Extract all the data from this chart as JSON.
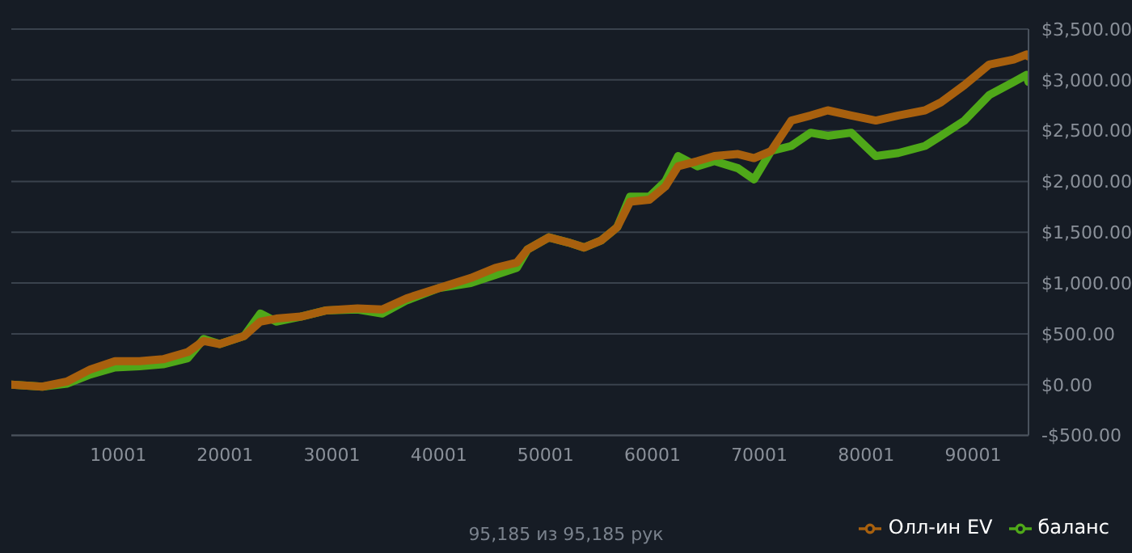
{
  "chart_data": {
    "type": "line",
    "annotations": [
      "95,185 из 95,185 рук"
    ],
    "x": [
      1,
      2900,
      5200,
      7400,
      9700,
      12000,
      14200,
      16500,
      18000,
      19500,
      21800,
      23300,
      24800,
      27100,
      29400,
      32400,
      34700,
      37000,
      40000,
      43000,
      45300,
      47300,
      48300,
      50300,
      52100,
      53600,
      55200,
      56700,
      57900,
      59700,
      61200,
      62400,
      64200,
      65800,
      68000,
      69500,
      71100,
      73000,
      74800,
      76400,
      78600,
      80900,
      83000,
      85500,
      87000,
      89200,
      91500,
      93800,
      95000,
      95185
    ],
    "series": [
      {
        "name": "Олл-ин EV",
        "color": "#a8600e",
        "values": [
          0,
          -20,
          30,
          150,
          230,
          230,
          250,
          320,
          430,
          400,
          480,
          620,
          650,
          670,
          730,
          750,
          740,
          850,
          950,
          1050,
          1150,
          1200,
          1330,
          1450,
          1400,
          1350,
          1420,
          1550,
          1800,
          1820,
          1950,
          2150,
          2200,
          2250,
          2270,
          2230,
          2300,
          2600,
          2650,
          2700,
          2650,
          2600,
          2650,
          2700,
          2780,
          2950,
          3150,
          3200,
          3250,
          3230
        ]
      },
      {
        "name": "баланс",
        "color": "#4fa819",
        "values": [
          0,
          -20,
          10,
          100,
          170,
          180,
          200,
          260,
          450,
          400,
          480,
          700,
          620,
          670,
          730,
          740,
          700,
          830,
          950,
          1000,
          1080,
          1150,
          1330,
          1450,
          1400,
          1350,
          1420,
          1550,
          1850,
          1850,
          2000,
          2250,
          2150,
          2200,
          2130,
          2020,
          2300,
          2350,
          2480,
          2450,
          2480,
          2250,
          2280,
          2350,
          2450,
          2600,
          2850,
          2980,
          3050,
          2980
        ]
      }
    ],
    "xlim": [
      1,
      95185
    ],
    "xticks": [
      10001,
      20001,
      30001,
      40001,
      50001,
      60001,
      70001,
      80001,
      90001
    ],
    "ylim": [
      -500,
      3500
    ],
    "yticks": [
      {
        "value": -500,
        "label": "-$500.00"
      },
      {
        "value": 0,
        "label": "$0.00"
      },
      {
        "value": 500,
        "label": "$500.00"
      },
      {
        "value": 1000,
        "label": "$1,000.00"
      },
      {
        "value": 1500,
        "label": "$1,500.00"
      },
      {
        "value": 2000,
        "label": "$2,000.00"
      },
      {
        "value": 2500,
        "label": "$2,500.00"
      },
      {
        "value": 3000,
        "label": "$3,000.00"
      },
      {
        "value": 3500,
        "label": "$3,500.00"
      }
    ],
    "grid": "y",
    "legend": "bottom right"
  }
}
